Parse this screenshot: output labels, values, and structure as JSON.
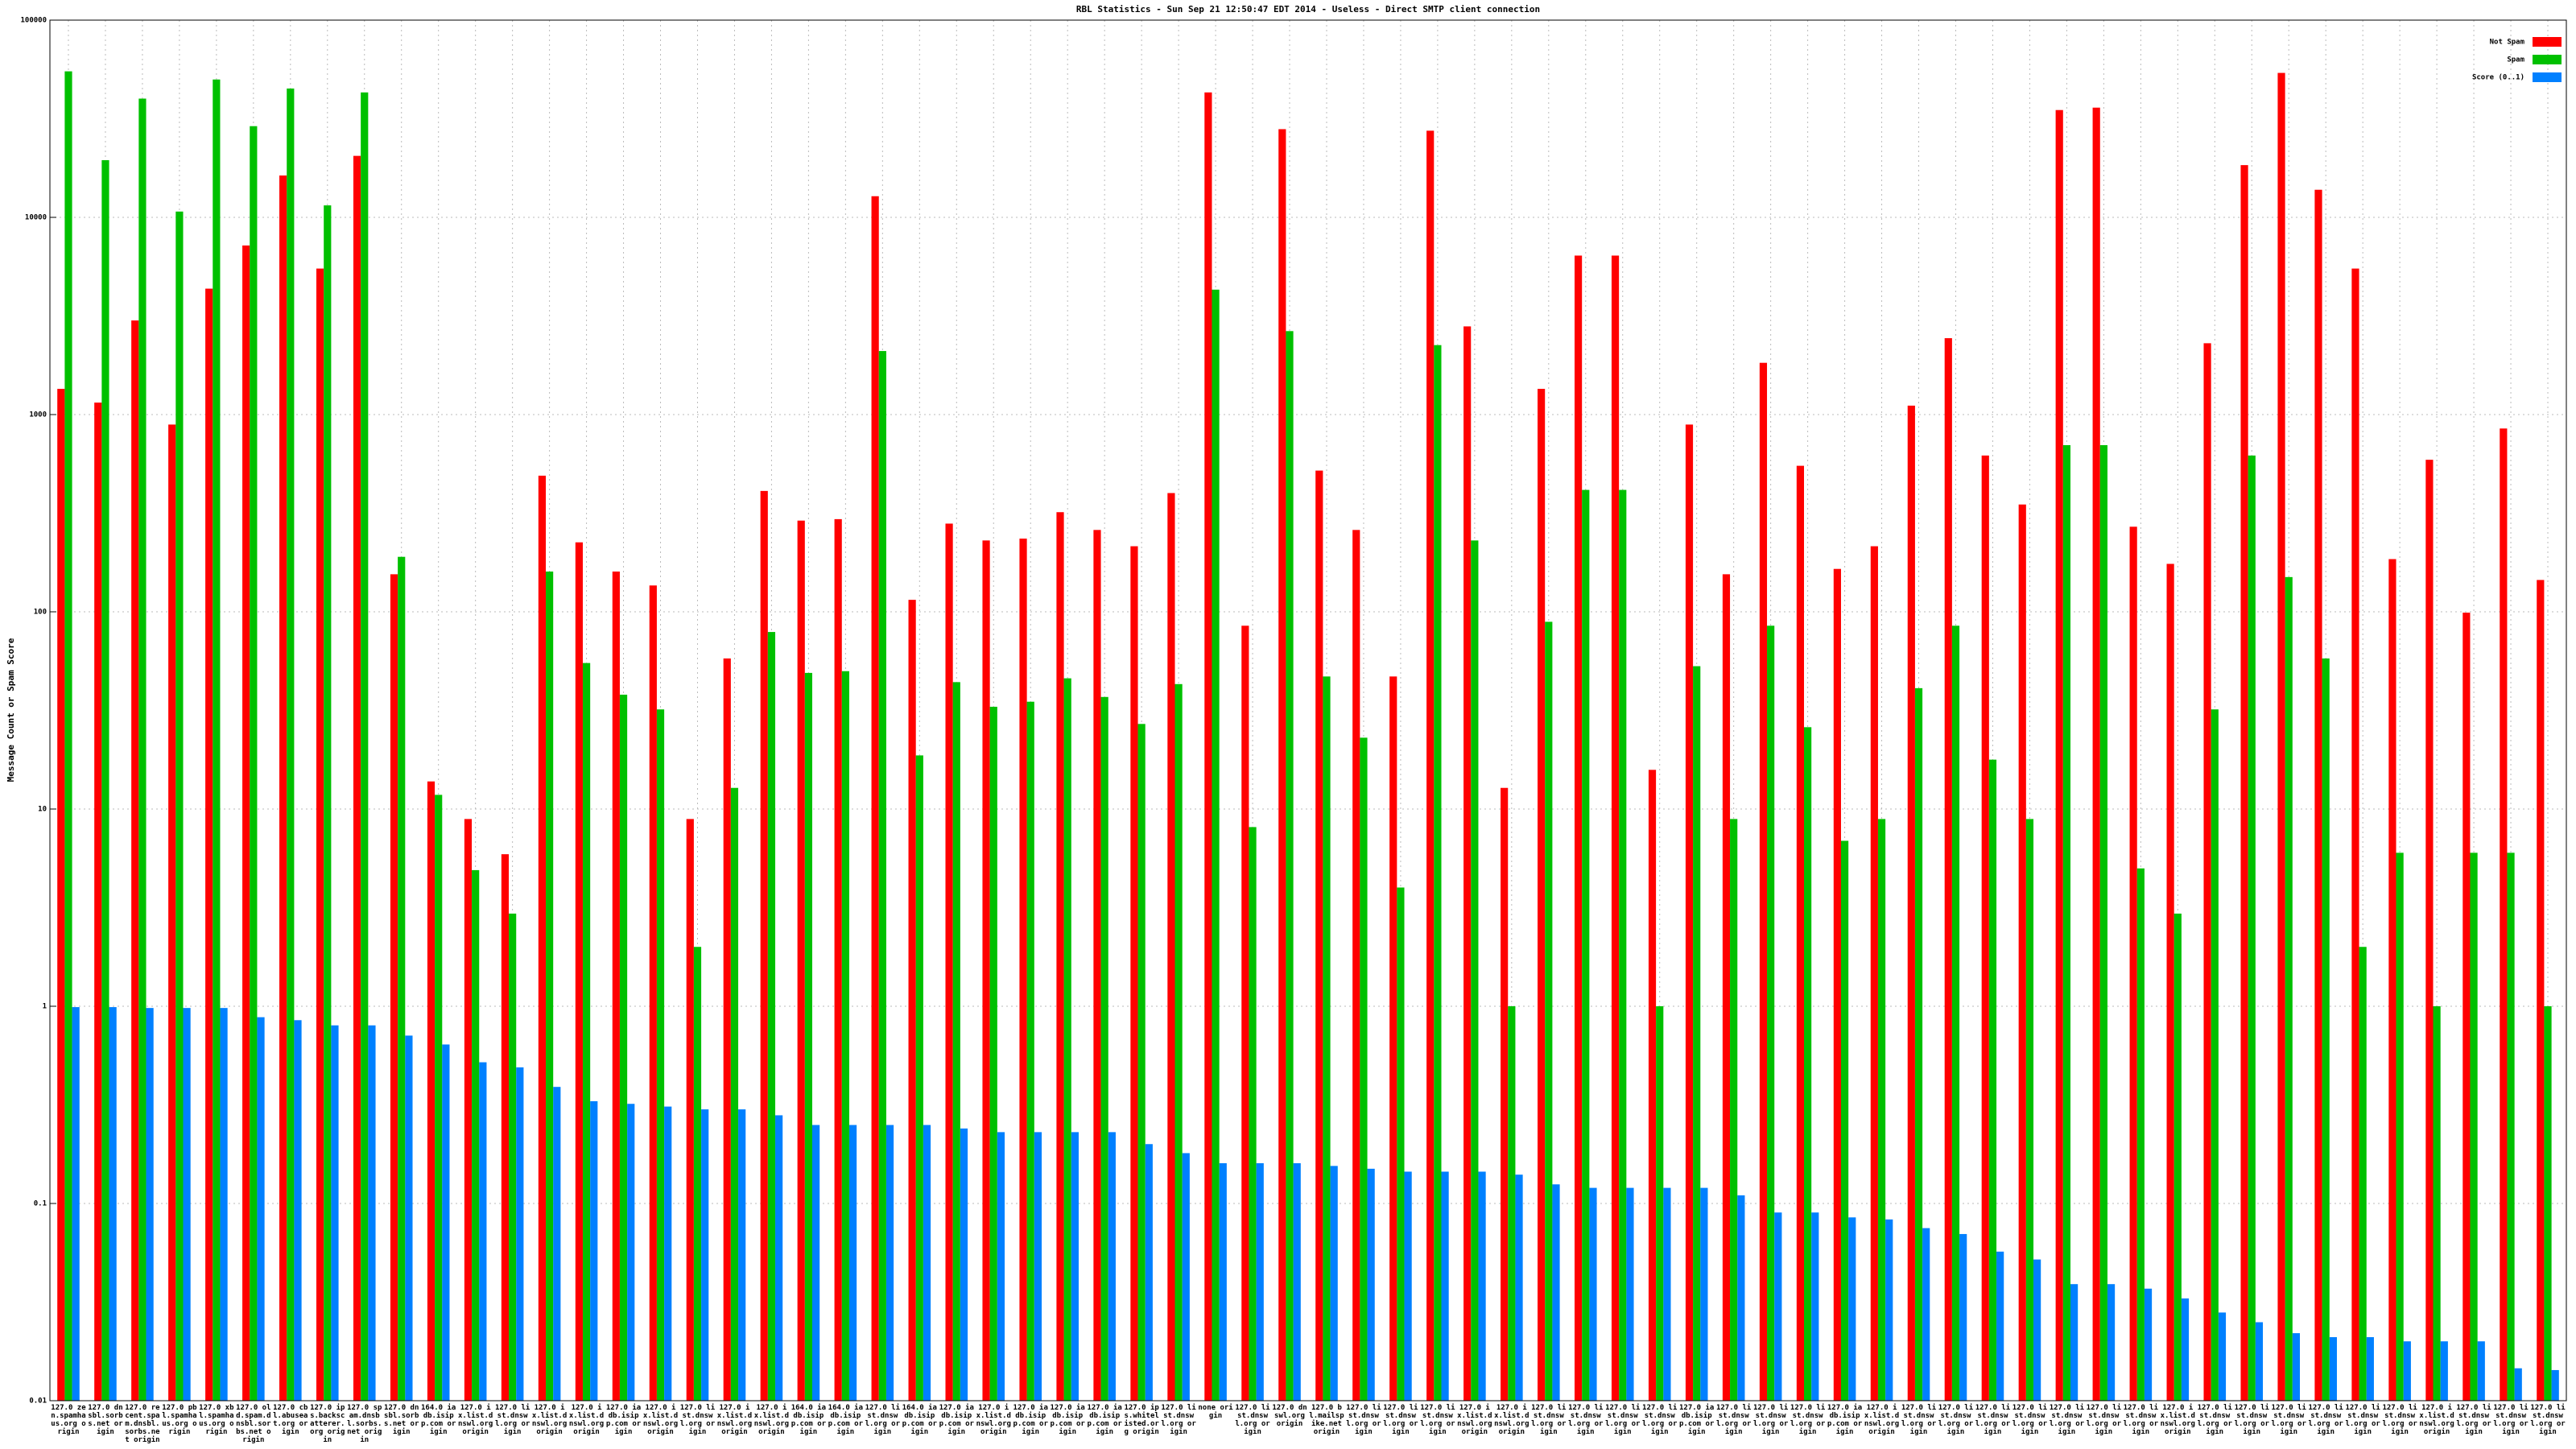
{
  "chart_data": {
    "type": "bar",
    "title": "RBL Statistics - Sun Sep 21 12:50:47 EDT 2014 - Useless - Direct SMTP client connection",
    "y_label": "Message Count or Spam Score",
    "log_scale": true,
    "grid": true,
    "legend": "top-right",
    "ylim": [
      0.01,
      100000
    ],
    "yticks": [
      0.01,
      0.1,
      1,
      10,
      100,
      1000,
      10000,
      100000
    ],
    "categories": [
      "127.0 zen.spamhaus.org origin",
      "127.0 dnsbl.sorbs.net origin",
      "127.0 recent.spam.dnsbl.sorbs.net origin",
      "127.0 pbl.spamhaus.org origin",
      "127.0 xbl.spamhaus.org origin",
      "127.0 old.spam.dnsbl.sorbs.net origin",
      "127.0 cbl.abuseat.org origin",
      "127.0 ips.backscatterer.org origin",
      "127.0 spam.dnsbl.sorbs.net origin",
      "127.0 dnsbl.sorbs.net origin",
      "164.0 iadb.isipp.com origin",
      "127.0 ix.list.dnswl.org origin",
      "127.0 list.dnswl.org origin",
      "127.0 ix.list.dnswl.org origin",
      "127.0 ix.list.dnswl.org origin",
      "127.0 iadb.isipp.com origin",
      "127.0 ix.list.dnswl.org origin",
      "127.0 list.dnswl.org origin",
      "127.0 ix.list.dnswl.org origin",
      "127.0 ix.list.dnswl.org origin",
      "164.0 iadb.isipp.com origin",
      "164.0 iadb.isipp.com origin",
      "127.0 list.dnswl.org origin",
      "164.0 iadb.isipp.com origin",
      "127.0 iadb.isipp.com origin",
      "127.0 ix.list.dnswl.org origin",
      "127.0 iadb.isipp.com origin",
      "127.0 iadb.isipp.com origin",
      "127.0 iadb.isipp.com origin",
      "127.0 ips.whitelisted.org origin",
      "127.0 list.dnswl.org origin",
      "none origin",
      "127.0 list.dnswl.org origin",
      "127.0 dnswl.org origin",
      "127.0 bl.mailspike.net origin",
      "127.0 list.dnswl.org origin",
      "127.0 list.dnswl.org origin",
      "127.0 list.dnswl.org origin",
      "127.0 ix.list.dnswl.org origin",
      "127.0 ix.list.dnswl.org origin",
      "127.0 list.dnswl.org origin",
      "127.0 list.dnswl.org origin",
      "127.0 list.dnswl.org origin",
      "127.0 list.dnswl.org origin",
      "127.0 iadb.isipp.com origin",
      "127.0 list.dnswl.org origin",
      "127.0 list.dnswl.org origin",
      "127.0 list.dnswl.org origin",
      "127.0 iadb.isipp.com origin",
      "127.0 ix.list.dnswl.org origin",
      "127.0 list.dnswl.org origin",
      "127.0 list.dnswl.org origin",
      "127.0 list.dnswl.org origin",
      "127.0 list.dnswl.org origin",
      "127.0 list.dnswl.org origin",
      "127.0 list.dnswl.org origin",
      "127.0 list.dnswl.org origin",
      "127.0 ix.list.dnswl.org origin",
      "127.0 list.dnswl.org origin",
      "127.0 list.dnswl.org origin",
      "127.0 list.dnswl.org origin",
      "127.0 list.dnswl.org origin",
      "127.0 list.dnswl.org origin",
      "127.0 list.dnswl.org origin",
      "127.0 ix.list.dnswl.org origin",
      "127.0 list.dnswl.org origin",
      "127.0 list.dnswl.org origin",
      "127.0 list.dnswl.org origin"
    ],
    "series": [
      {
        "name": "Not Spam",
        "color": "#ff0000",
        "values": [
          1350,
          1150,
          3000,
          890,
          4350,
          7200,
          16300,
          5500,
          20500,
          155,
          13.8,
          8.9,
          5.9,
          490,
          225,
          160,
          136,
          8.9,
          58,
          410,
          290,
          295,
          12800,
          115,
          280,
          230,
          235,
          320,
          260,
          215,
          400,
          43000,
          85,
          28000,
          520,
          260,
          47,
          27500,
          2800,
          12.8,
          1350,
          6400,
          6400,
          15.8,
          890,
          155,
          1830,
          550,
          165,
          215,
          1110,
          2440,
          620,
          350,
          35000,
          36000,
          270,
          175,
          2300,
          18400,
          54000,
          13800,
          5500,
          185,
          590,
          99,
          850,
          145
        ]
      },
      {
        "name": "Spam",
        "color": "#00c000",
        "values": [
          55000,
          19500,
          40000,
          10700,
          50000,
          29000,
          45000,
          11500,
          43000,
          190,
          11.8,
          4.9,
          2.95,
          160,
          55,
          38,
          32,
          2.0,
          12.8,
          79,
          49,
          50,
          2100,
          18.7,
          44,
          33,
          35,
          46,
          37,
          27,
          43,
          4300,
          8.1,
          2650,
          47,
          23,
          4.0,
          2250,
          230,
          1.0,
          89,
          415,
          415,
          1.0,
          53,
          8.9,
          85,
          26,
          6.9,
          8.9,
          41,
          85,
          17.8,
          8.9,
          700,
          700,
          5.0,
          2.95,
          32,
          620,
          150,
          58,
          2.0,
          6.0,
          1.0,
          6.0,
          6.0,
          1.0
        ]
      },
      {
        "name": "Score (0..1)",
        "color": "#0080ff",
        "values": [
          0.99,
          0.99,
          0.98,
          0.98,
          0.98,
          0.88,
          0.85,
          0.8,
          0.8,
          0.71,
          0.64,
          0.52,
          0.49,
          0.39,
          0.33,
          0.32,
          0.31,
          0.3,
          0.3,
          0.28,
          0.25,
          0.25,
          0.25,
          0.25,
          0.24,
          0.23,
          0.23,
          0.23,
          0.23,
          0.2,
          0.18,
          0.16,
          0.16,
          0.16,
          0.155,
          0.15,
          0.145,
          0.145,
          0.145,
          0.14,
          0.125,
          0.12,
          0.12,
          0.12,
          0.12,
          0.11,
          0.09,
          0.09,
          0.085,
          0.083,
          0.075,
          0.07,
          0.057,
          0.052,
          0.039,
          0.039,
          0.037,
          0.033,
          0.028,
          0.025,
          0.022,
          0.021,
          0.021,
          0.02,
          0.02,
          0.02,
          0.0146,
          0.0143
        ]
      }
    ]
  }
}
